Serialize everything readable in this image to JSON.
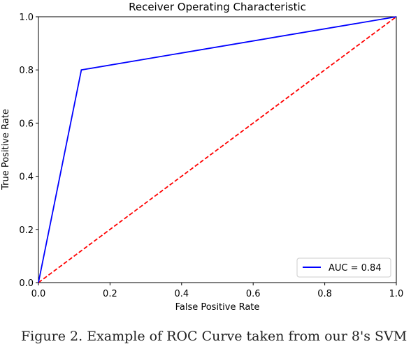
{
  "chart_data": {
    "type": "line",
    "title": "Receiver Operating Characteristic",
    "xlabel": "False Positive Rate",
    "ylabel": "True Positive Rate",
    "xlim": [
      0,
      1
    ],
    "ylim": [
      0,
      1
    ],
    "xticks": [
      "0.0",
      "0.2",
      "0.4",
      "0.6",
      "0.8",
      "1.0"
    ],
    "yticks": [
      "0.0",
      "0.2",
      "0.4",
      "0.6",
      "0.8",
      "1.0"
    ],
    "grid": false,
    "legend_position": "lower-right",
    "series": [
      {
        "name": "AUC = 0.84",
        "color": "#0000ff",
        "style": "solid",
        "x": [
          0.0,
          0.12,
          1.0
        ],
        "y": [
          0.0,
          0.8,
          1.0
        ]
      },
      {
        "name": "",
        "color": "#ff0000",
        "style": "dashed",
        "x": [
          0.0,
          1.0
        ],
        "y": [
          0.0,
          1.0
        ]
      }
    ]
  },
  "caption": "Figure 2.    Example of ROC Curve taken from our 8's SVM"
}
